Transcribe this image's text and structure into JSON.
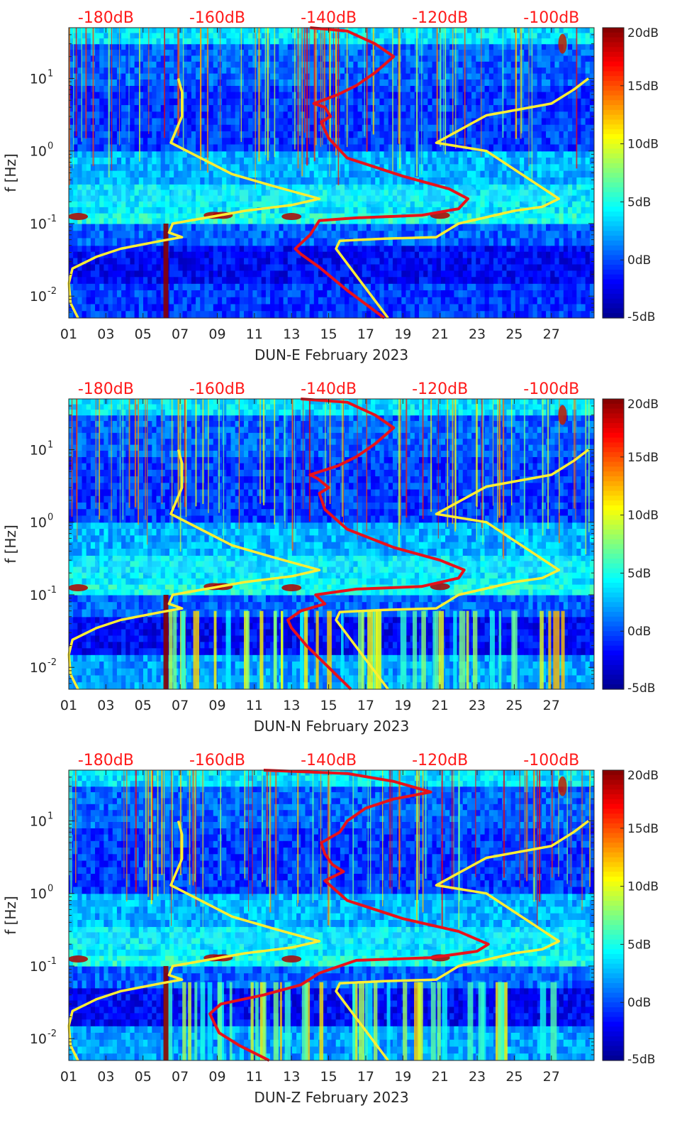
{
  "chart_data": [
    {
      "type": "heatmap",
      "title": "",
      "xlabel": "DUN-E February 2023",
      "ylabel": "f [Hz]",
      "x_ticks": [
        "01",
        "03",
        "05",
        "07",
        "09",
        "11",
        "13",
        "15",
        "17",
        "19",
        "21",
        "23",
        "25",
        "27"
      ],
      "x_tick_days": [
        1,
        3,
        5,
        7,
        9,
        11,
        13,
        15,
        17,
        19,
        21,
        23,
        25,
        27
      ],
      "xlim_days": [
        1,
        29.3
      ],
      "y_ticks": [
        {
          "value": 0.01,
          "base": "10",
          "exp": "-2"
        },
        {
          "value": 0.1,
          "base": "10",
          "exp": "-1"
        },
        {
          "value": 1,
          "base": "10",
          "exp": "0"
        },
        {
          "value": 10,
          "base": "10",
          "exp": "1"
        }
      ],
      "ylim_hz": [
        0.005,
        50
      ],
      "yscale": "log",
      "top_db_labels": [
        "-180dB",
        "-160dB",
        "-140dB",
        "-120dB",
        "-100dB"
      ],
      "top_db_days": [
        3,
        9,
        15,
        21,
        27
      ],
      "colorbar_labels": [
        "20dB",
        "15dB",
        "10dB",
        "5dB",
        "0dB",
        "-5dB"
      ],
      "colorbar_range_db": [
        -5,
        20
      ],
      "colormap": [
        "#00008f",
        "#0000ff",
        "#0080ff",
        "#00ffff",
        "#80ff80",
        "#ffff00",
        "#ff8000",
        "#ff0000",
        "#800000"
      ],
      "series": [
        {
          "name": "yellow noise model (left)",
          "color": "#ffee33",
          "points": [
            [
              1.5,
              0.005
            ],
            [
              1.1,
              0.008
            ],
            [
              1.0,
              0.015
            ],
            [
              1.2,
              0.024
            ],
            [
              2.5,
              0.035
            ],
            [
              3.8,
              0.045
            ],
            [
              6.0,
              0.058
            ],
            [
              7.1,
              0.065
            ],
            [
              6.4,
              0.075
            ],
            [
              6.6,
              0.1
            ],
            [
              10.5,
              0.15
            ],
            [
              13.0,
              0.18
            ],
            [
              14.5,
              0.22
            ],
            [
              12.0,
              0.33
            ],
            [
              9.8,
              0.48
            ],
            [
              6.5,
              1.3
            ],
            [
              7.1,
              3.0
            ],
            [
              7.1,
              6.5
            ],
            [
              6.9,
              10.0
            ]
          ]
        },
        {
          "name": "yellow noise model (right)",
          "color": "#ffee33",
          "points": [
            [
              18.2,
              0.005
            ],
            [
              16.8,
              0.015
            ],
            [
              15.4,
              0.045
            ],
            [
              15.6,
              0.058
            ],
            [
              18.0,
              0.062
            ],
            [
              20.8,
              0.065
            ],
            [
              22.0,
              0.1
            ],
            [
              25.0,
              0.15
            ],
            [
              26.5,
              0.17
            ],
            [
              27.4,
              0.22
            ],
            [
              23.5,
              1.0
            ],
            [
              20.8,
              1.3
            ],
            [
              23.5,
              3.1
            ],
            [
              27.0,
              4.5
            ],
            [
              28.2,
              7.0
            ],
            [
              29.0,
              10.0
            ]
          ]
        },
        {
          "name": "red median PSD",
          "color": "#e8121a",
          "points": [
            [
              18.0,
              0.005
            ],
            [
              16.0,
              0.012
            ],
            [
              14.5,
              0.025
            ],
            [
              13.5,
              0.038
            ],
            [
              13.2,
              0.045
            ],
            [
              14.0,
              0.07
            ],
            [
              14.5,
              0.11
            ],
            [
              16.5,
              0.12
            ],
            [
              20.0,
              0.13
            ],
            [
              22.0,
              0.16
            ],
            [
              22.5,
              0.22
            ],
            [
              21.5,
              0.3
            ],
            [
              19.0,
              0.45
            ],
            [
              16.0,
              0.8
            ],
            [
              15.0,
              1.5
            ],
            [
              14.6,
              2.5
            ],
            [
              15.1,
              3.0
            ],
            [
              14.8,
              4.0
            ],
            [
              14.2,
              4.5
            ],
            [
              15.5,
              6.0
            ],
            [
              16.5,
              8.0
            ],
            [
              17.5,
              12.0
            ],
            [
              18.5,
              20.0
            ],
            [
              17.5,
              30.0
            ],
            [
              16.0,
              45.0
            ],
            [
              14.0,
              50.0
            ]
          ]
        }
      ]
    },
    {
      "type": "heatmap",
      "title": "",
      "xlabel": "DUN-N February 2023",
      "ylabel": "f [Hz]",
      "x_ticks": [
        "01",
        "03",
        "05",
        "07",
        "09",
        "11",
        "13",
        "15",
        "17",
        "19",
        "21",
        "23",
        "25",
        "27"
      ],
      "x_tick_days": [
        1,
        3,
        5,
        7,
        9,
        11,
        13,
        15,
        17,
        19,
        21,
        23,
        25,
        27
      ],
      "xlim_days": [
        1,
        29.3
      ],
      "y_ticks": [
        {
          "value": 0.01,
          "base": "10",
          "exp": "-2"
        },
        {
          "value": 0.1,
          "base": "10",
          "exp": "-1"
        },
        {
          "value": 1,
          "base": "10",
          "exp": "0"
        },
        {
          "value": 10,
          "base": "10",
          "exp": "1"
        }
      ],
      "ylim_hz": [
        0.005,
        50
      ],
      "yscale": "log",
      "top_db_labels": [
        "-180dB",
        "-160dB",
        "-140dB",
        "-120dB",
        "-100dB"
      ],
      "top_db_days": [
        3,
        9,
        15,
        21,
        27
      ],
      "colorbar_labels": [
        "20dB",
        "15dB",
        "10dB",
        "5dB",
        "0dB",
        "-5dB"
      ],
      "colorbar_range_db": [
        -5,
        20
      ],
      "colormap": [
        "#00008f",
        "#0000ff",
        "#0080ff",
        "#00ffff",
        "#80ff80",
        "#ffff00",
        "#ff8000",
        "#ff0000",
        "#800000"
      ],
      "series": [
        {
          "name": "yellow noise model (left)",
          "color": "#ffee33",
          "points": [
            [
              1.5,
              0.005
            ],
            [
              1.1,
              0.008
            ],
            [
              1.0,
              0.015
            ],
            [
              1.2,
              0.024
            ],
            [
              2.5,
              0.035
            ],
            [
              3.8,
              0.045
            ],
            [
              6.0,
              0.058
            ],
            [
              7.1,
              0.065
            ],
            [
              6.4,
              0.075
            ],
            [
              6.6,
              0.1
            ],
            [
              10.5,
              0.15
            ],
            [
              13.0,
              0.18
            ],
            [
              14.5,
              0.22
            ],
            [
              12.0,
              0.33
            ],
            [
              9.8,
              0.48
            ],
            [
              6.5,
              1.3
            ],
            [
              7.1,
              3.0
            ],
            [
              7.1,
              6.5
            ],
            [
              6.9,
              10.0
            ]
          ]
        },
        {
          "name": "yellow noise model (right)",
          "color": "#ffee33",
          "points": [
            [
              18.2,
              0.005
            ],
            [
              16.8,
              0.015
            ],
            [
              15.4,
              0.045
            ],
            [
              15.6,
              0.058
            ],
            [
              18.0,
              0.062
            ],
            [
              20.8,
              0.065
            ],
            [
              22.0,
              0.1
            ],
            [
              25.0,
              0.15
            ],
            [
              26.5,
              0.17
            ],
            [
              27.4,
              0.22
            ],
            [
              23.5,
              1.0
            ],
            [
              20.8,
              1.3
            ],
            [
              23.5,
              3.1
            ],
            [
              27.0,
              4.5
            ],
            [
              28.2,
              7.0
            ],
            [
              29.0,
              10.0
            ]
          ]
        },
        {
          "name": "red median PSD",
          "color": "#e8121a",
          "points": [
            [
              16.2,
              0.005
            ],
            [
              15.0,
              0.01
            ],
            [
              13.8,
              0.02
            ],
            [
              13.0,
              0.035
            ],
            [
              12.8,
              0.045
            ],
            [
              13.5,
              0.06
            ],
            [
              14.8,
              0.075
            ],
            [
              14.3,
              0.1
            ],
            [
              16.5,
              0.12
            ],
            [
              20.0,
              0.13
            ],
            [
              22.0,
              0.17
            ],
            [
              22.3,
              0.22
            ],
            [
              21.0,
              0.3
            ],
            [
              18.5,
              0.45
            ],
            [
              16.0,
              0.8
            ],
            [
              14.8,
              1.5
            ],
            [
              14.5,
              2.5
            ],
            [
              15.0,
              3.0
            ],
            [
              14.4,
              4.0
            ],
            [
              14.0,
              4.5
            ],
            [
              15.5,
              6.0
            ],
            [
              16.5,
              8.0
            ],
            [
              17.5,
              12.0
            ],
            [
              18.5,
              20.0
            ],
            [
              17.5,
              30.0
            ],
            [
              16.0,
              45.0
            ],
            [
              13.5,
              50.0
            ]
          ]
        }
      ]
    },
    {
      "type": "heatmap",
      "title": "",
      "xlabel": "DUN-Z February 2023",
      "ylabel": "f [Hz]",
      "x_ticks": [
        "01",
        "03",
        "05",
        "07",
        "09",
        "11",
        "13",
        "15",
        "17",
        "19",
        "21",
        "23",
        "25",
        "27"
      ],
      "x_tick_days": [
        1,
        3,
        5,
        7,
        9,
        11,
        13,
        15,
        17,
        19,
        21,
        23,
        25,
        27
      ],
      "xlim_days": [
        1,
        29.3
      ],
      "y_ticks": [
        {
          "value": 0.01,
          "base": "10",
          "exp": "-2"
        },
        {
          "value": 0.1,
          "base": "10",
          "exp": "-1"
        },
        {
          "value": 1,
          "base": "10",
          "exp": "0"
        },
        {
          "value": 10,
          "base": "10",
          "exp": "1"
        }
      ],
      "ylim_hz": [
        0.005,
        50
      ],
      "yscale": "log",
      "top_db_labels": [
        "-180dB",
        "-160dB",
        "-140dB",
        "-120dB",
        "-100dB"
      ],
      "top_db_days": [
        3,
        9,
        15,
        21,
        27
      ],
      "colorbar_labels": [
        "20dB",
        "15dB",
        "10dB",
        "5dB",
        "0dB",
        "-5dB"
      ],
      "colorbar_range_db": [
        -5,
        20
      ],
      "colormap": [
        "#00008f",
        "#0000ff",
        "#0080ff",
        "#00ffff",
        "#80ff80",
        "#ffff00",
        "#ff8000",
        "#ff0000",
        "#800000"
      ],
      "series": [
        {
          "name": "yellow noise model (left)",
          "color": "#ffee33",
          "points": [
            [
              1.5,
              0.005
            ],
            [
              1.1,
              0.008
            ],
            [
              1.0,
              0.015
            ],
            [
              1.2,
              0.024
            ],
            [
              2.5,
              0.035
            ],
            [
              3.8,
              0.045
            ],
            [
              6.0,
              0.058
            ],
            [
              7.1,
              0.065
            ],
            [
              6.4,
              0.075
            ],
            [
              6.6,
              0.1
            ],
            [
              10.5,
              0.15
            ],
            [
              13.0,
              0.18
            ],
            [
              14.5,
              0.22
            ],
            [
              12.0,
              0.33
            ],
            [
              9.8,
              0.48
            ],
            [
              6.5,
              1.3
            ],
            [
              7.1,
              3.0
            ],
            [
              7.1,
              6.5
            ],
            [
              6.9,
              10.0
            ]
          ]
        },
        {
          "name": "yellow noise model (right)",
          "color": "#ffee33",
          "points": [
            [
              18.2,
              0.005
            ],
            [
              16.8,
              0.015
            ],
            [
              15.4,
              0.045
            ],
            [
              15.6,
              0.058
            ],
            [
              18.0,
              0.062
            ],
            [
              20.8,
              0.065
            ],
            [
              22.0,
              0.1
            ],
            [
              25.0,
              0.15
            ],
            [
              26.5,
              0.17
            ],
            [
              27.4,
              0.22
            ],
            [
              23.5,
              1.0
            ],
            [
              20.8,
              1.3
            ],
            [
              23.5,
              3.1
            ],
            [
              27.0,
              4.5
            ],
            [
              28.2,
              7.0
            ],
            [
              29.0,
              10.0
            ]
          ]
        },
        {
          "name": "red median PSD",
          "color": "#e8121a",
          "points": [
            [
              11.8,
              0.005
            ],
            [
              10.2,
              0.008
            ],
            [
              9.1,
              0.012
            ],
            [
              8.6,
              0.022
            ],
            [
              9.2,
              0.03
            ],
            [
              11.5,
              0.04
            ],
            [
              13.5,
              0.055
            ],
            [
              14.5,
              0.08
            ],
            [
              16.5,
              0.12
            ],
            [
              20.5,
              0.13
            ],
            [
              23.0,
              0.16
            ],
            [
              23.6,
              0.2
            ],
            [
              22.0,
              0.3
            ],
            [
              19.0,
              0.45
            ],
            [
              16.0,
              0.8
            ],
            [
              14.8,
              1.5
            ],
            [
              15.8,
              2.0
            ],
            [
              15.2,
              2.5
            ],
            [
              14.8,
              3.5
            ],
            [
              14.6,
              5.0
            ],
            [
              15.6,
              7.0
            ],
            [
              16.0,
              10.0
            ],
            [
              17.0,
              15.0
            ],
            [
              18.5,
              20.0
            ],
            [
              20.5,
              25.0
            ],
            [
              18.5,
              35.0
            ],
            [
              16.0,
              45.0
            ],
            [
              11.5,
              50.0
            ]
          ]
        }
      ]
    }
  ]
}
